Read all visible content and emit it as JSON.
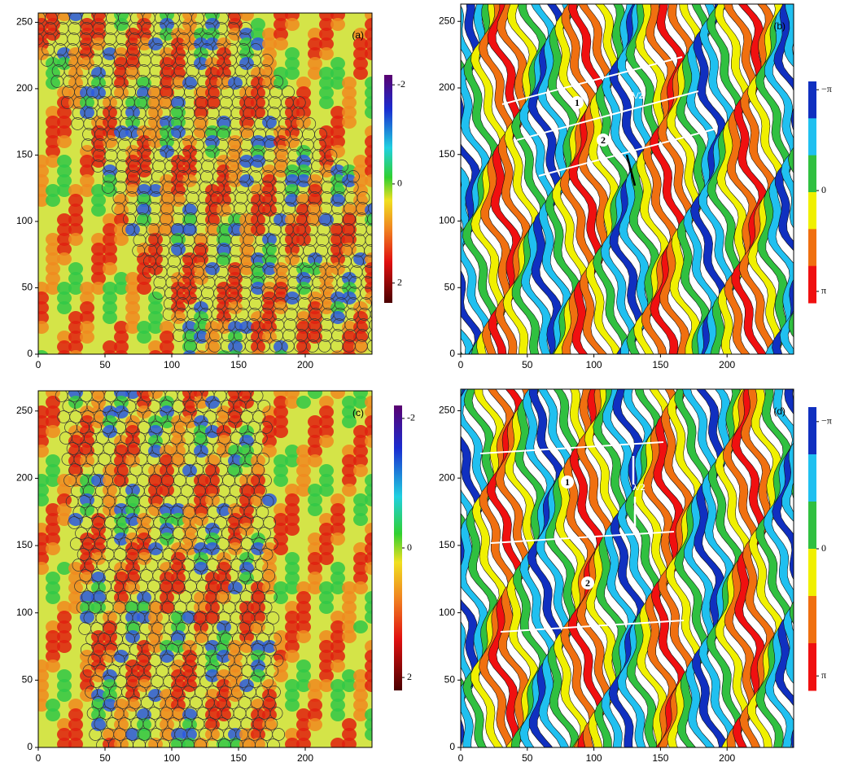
{
  "chart_data": [
    {
      "type": "heatmap",
      "panel_label": "(a)",
      "xlim": [
        0,
        250
      ],
      "ylim": [
        0,
        257
      ],
      "xticks": [
        0,
        50,
        100,
        150,
        200
      ],
      "yticks": [
        0,
        50,
        100,
        150,
        200,
        250
      ],
      "clim": [
        -2.2,
        2.4
      ],
      "cticks": [
        -2,
        0,
        2
      ]
    },
    {
      "type": "heatmap",
      "panel_label": "(b)",
      "xlim": [
        0,
        250
      ],
      "ylim": [
        0,
        263
      ],
      "xticks": [
        0,
        50,
        100,
        150,
        200
      ],
      "yticks": [
        0,
        50,
        100,
        150,
        200,
        250
      ],
      "clim": [
        -3.4,
        3.5
      ],
      "cticks": [
        {
          "value": -3.1416,
          "label": "−π"
        },
        0,
        {
          "value": 3.1416,
          "label": "π"
        }
      ],
      "annotations": [
        "1",
        "2",
        "λ/2"
      ]
    },
    {
      "type": "heatmap",
      "panel_label": "(c)",
      "xlim": [
        0,
        250
      ],
      "ylim": [
        0,
        265
      ],
      "xticks": [
        0,
        50,
        100,
        150,
        200
      ],
      "yticks": [
        0,
        50,
        100,
        150,
        200,
        250
      ],
      "clim": [
        -2.2,
        2.2
      ],
      "cticks": [
        -2,
        0,
        2
      ]
    },
    {
      "type": "heatmap",
      "panel_label": "(d)",
      "xlim": [
        0,
        250
      ],
      "ylim": [
        0,
        266
      ],
      "xticks": [
        0,
        50,
        100,
        150,
        200
      ],
      "yticks": [
        0,
        50,
        100,
        150,
        200,
        250
      ],
      "clim": [
        -3.5,
        3.5
      ],
      "cticks": [
        {
          "value": -3.1416,
          "label": "−π"
        },
        0,
        {
          "value": 3.1416,
          "label": "π"
        }
      ],
      "annotations": [
        "1",
        "2",
        "λ/2"
      ]
    }
  ]
}
